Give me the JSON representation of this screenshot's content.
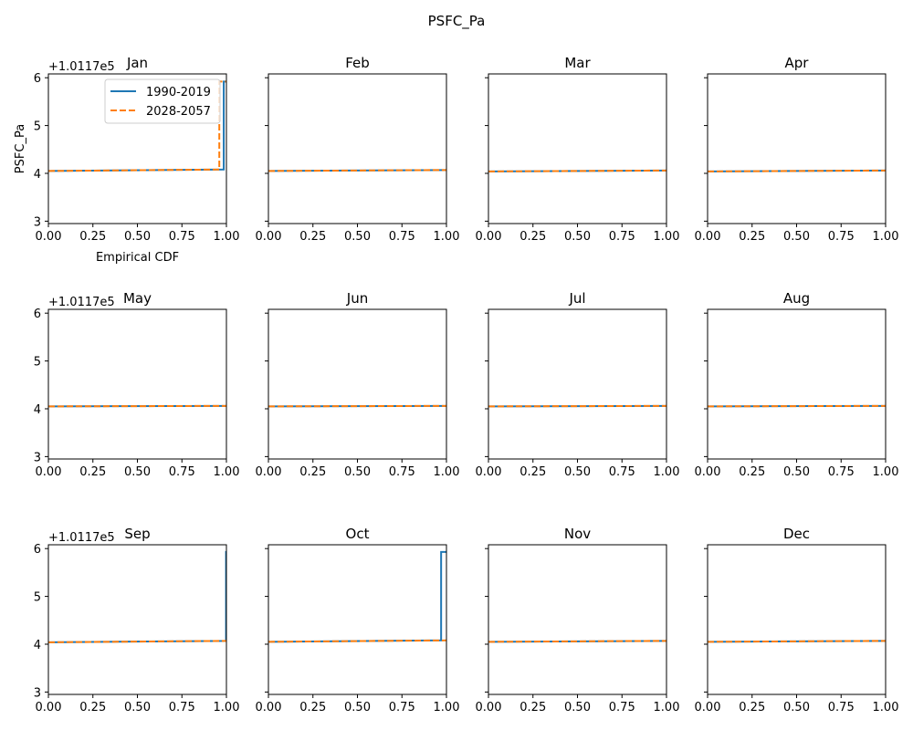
{
  "figure": {
    "title": "PSFC_Pa",
    "ylabel": "PSFC_Pa",
    "xlabel": "Empirical CDF",
    "y_offset_text": "+1.0117e5"
  },
  "colors": {
    "hist": "#1f77b4",
    "future": "#ff7f0e"
  },
  "legend": {
    "position": "upper-right of first panel",
    "entries": [
      {
        "label": "1990-2019",
        "style": "solid"
      },
      {
        "label": "2028-2057",
        "style": "dashed"
      }
    ]
  },
  "chart_data": {
    "type": "line",
    "drawstyle": "steps",
    "sharey": true,
    "xlim": [
      0,
      1
    ],
    "ylim": [
      2.95,
      6.08
    ],
    "y_offset": 101170,
    "xticks": [
      "0.00",
      "0.25",
      "0.50",
      "0.75",
      "1.00"
    ],
    "yticks": [
      "3",
      "4",
      "5",
      "6"
    ],
    "series_names": [
      "1990-2019",
      "2028-2057"
    ],
    "panels": [
      {
        "title": "Jan",
        "series": [
          {
            "name": "1990-2019",
            "points": [
              [
                0,
                4.05
              ],
              [
                0.985,
                4.08
              ],
              [
                0.985,
                5.92
              ],
              [
                1.0,
                5.92
              ]
            ]
          },
          {
            "name": "2028-2057",
            "points": [
              [
                0,
                4.05
              ],
              [
                0.96,
                4.08
              ],
              [
                0.96,
                5.92
              ],
              [
                1.0,
                5.92
              ]
            ]
          }
        ]
      },
      {
        "title": "Feb",
        "series": [
          {
            "name": "1990-2019",
            "points": [
              [
                0,
                4.05
              ],
              [
                1.0,
                4.07
              ]
            ]
          },
          {
            "name": "2028-2057",
            "points": [
              [
                0,
                4.05
              ],
              [
                1.0,
                4.07
              ]
            ]
          }
        ]
      },
      {
        "title": "Mar",
        "series": [
          {
            "name": "1990-2019",
            "points": [
              [
                0,
                4.04
              ],
              [
                1.0,
                4.06
              ]
            ]
          },
          {
            "name": "2028-2057",
            "points": [
              [
                0,
                4.04
              ],
              [
                1.0,
                4.06
              ]
            ]
          }
        ]
      },
      {
        "title": "Apr",
        "series": [
          {
            "name": "1990-2019",
            "points": [
              [
                0,
                4.04
              ],
              [
                1.0,
                4.06
              ]
            ]
          },
          {
            "name": "2028-2057",
            "points": [
              [
                0,
                4.04
              ],
              [
                1.0,
                4.06
              ]
            ]
          }
        ]
      },
      {
        "title": "May",
        "series": [
          {
            "name": "1990-2019",
            "points": [
              [
                0,
                4.05
              ],
              [
                1.0,
                4.06
              ]
            ]
          },
          {
            "name": "2028-2057",
            "points": [
              [
                0,
                4.05
              ],
              [
                1.0,
                4.06
              ]
            ]
          }
        ]
      },
      {
        "title": "Jun",
        "series": [
          {
            "name": "1990-2019",
            "points": [
              [
                0,
                4.05
              ],
              [
                1.0,
                4.06
              ]
            ]
          },
          {
            "name": "2028-2057",
            "points": [
              [
                0,
                4.05
              ],
              [
                1.0,
                4.06
              ]
            ]
          }
        ]
      },
      {
        "title": "Jul",
        "series": [
          {
            "name": "1990-2019",
            "points": [
              [
                0,
                4.05
              ],
              [
                1.0,
                4.06
              ]
            ]
          },
          {
            "name": "2028-2057",
            "points": [
              [
                0,
                4.05
              ],
              [
                1.0,
                4.06
              ]
            ]
          }
        ]
      },
      {
        "title": "Aug",
        "series": [
          {
            "name": "1990-2019",
            "points": [
              [
                0,
                4.05
              ],
              [
                1.0,
                4.06
              ]
            ]
          },
          {
            "name": "2028-2057",
            "points": [
              [
                0,
                4.05
              ],
              [
                1.0,
                4.06
              ]
            ]
          }
        ]
      },
      {
        "title": "Sep",
        "series": [
          {
            "name": "1990-2019",
            "points": [
              [
                0,
                4.04
              ],
              [
                0.998,
                4.07
              ],
              [
                0.998,
                5.93
              ],
              [
                1.0,
                5.93
              ]
            ]
          },
          {
            "name": "2028-2057",
            "points": [
              [
                0,
                4.04
              ],
              [
                1.0,
                4.07
              ]
            ]
          }
        ]
      },
      {
        "title": "Oct",
        "series": [
          {
            "name": "1990-2019",
            "points": [
              [
                0,
                4.05
              ],
              [
                0.97,
                4.08
              ],
              [
                0.97,
                5.93
              ],
              [
                1.0,
                5.93
              ]
            ]
          },
          {
            "name": "2028-2057",
            "points": [
              [
                0,
                4.05
              ],
              [
                1.0,
                4.08
              ]
            ]
          }
        ]
      },
      {
        "title": "Nov",
        "series": [
          {
            "name": "1990-2019",
            "points": [
              [
                0,
                4.05
              ],
              [
                1.0,
                4.07
              ]
            ]
          },
          {
            "name": "2028-2057",
            "points": [
              [
                0,
                4.05
              ],
              [
                1.0,
                4.07
              ]
            ]
          }
        ]
      },
      {
        "title": "Dec",
        "series": [
          {
            "name": "1990-2019",
            "points": [
              [
                0,
                4.05
              ],
              [
                1.0,
                4.07
              ]
            ]
          },
          {
            "name": "2028-2057",
            "points": [
              [
                0,
                4.05
              ],
              [
                1.0,
                4.07
              ]
            ]
          }
        ]
      }
    ]
  }
}
